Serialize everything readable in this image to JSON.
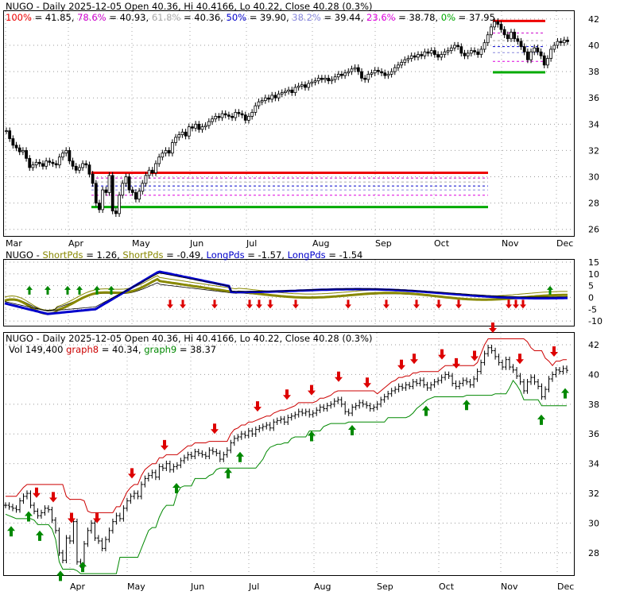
{
  "chart_data": [
    {
      "type": "line",
      "panel": "price-fibonacci",
      "title": "NUGO - Daily 2025-12-05 Open 40.36, Hi 40.4166, Lo 40.22, Close 40.28 (0.3%)",
      "fib_levels": [
        {
          "label": "100% = 41.85",
          "value": 41.85,
          "color": "#ee0000"
        },
        {
          "label": "78.6% = 40.93",
          "value": 40.93,
          "color": "#cc00cc"
        },
        {
          "label": "61.8% = 40.36",
          "value": 40.36,
          "color": "#aaaaaa"
        },
        {
          "label": "50% = 39.90",
          "value": 39.9,
          "color": "#0000cc"
        },
        {
          "label": "38.2% = 39.44",
          "value": 39.44,
          "color": "#8888dd"
        },
        {
          "label": "23.6% = 38.78",
          "value": 38.78,
          "color": "#dd00dd"
        },
        {
          "label": "0% = 37.95",
          "value": 37.95,
          "color": "#00aa00"
        }
      ],
      "yticks": [
        42,
        40,
        38,
        36,
        34,
        32,
        30,
        28,
        26
      ],
      "ylim": [
        25.5,
        42.6
      ],
      "x_labels": [
        "Mar",
        "Apr",
        "May",
        "Jun",
        "Jul",
        "Aug",
        "Sep",
        "Oct",
        "Nov",
        "Dec"
      ],
      "series": [
        {
          "values": [
            33.5,
            32.9,
            32.4,
            32.2,
            31.9,
            32.0,
            31.4,
            30.7,
            30.9,
            31.1,
            31.0,
            30.8,
            31.2,
            31.1,
            31.0,
            30.9,
            31.5,
            31.8,
            32.0,
            31.2,
            30.8,
            30.5,
            30.7,
            31.0,
            30.9,
            30.2,
            29.5,
            28.0,
            27.5,
            29.0,
            28.8,
            30.1,
            27.4,
            27.2,
            28.6,
            29.5,
            30.0,
            29.0,
            28.8,
            28.3,
            28.9,
            29.5,
            30.1,
            30.5,
            30.3,
            31.0,
            31.5,
            31.8,
            32.0,
            31.8,
            32.6,
            33.0,
            33.2,
            33.4,
            33.1,
            33.8,
            33.7,
            34.0,
            33.6,
            33.8,
            33.9,
            34.2,
            34.4,
            34.6,
            34.5,
            34.8,
            34.7,
            34.6,
            34.5,
            34.9,
            34.8,
            34.7,
            34.3,
            34.6,
            34.9,
            35.4,
            35.7,
            35.8,
            36.0,
            35.9,
            36.2,
            36.0,
            36.3,
            36.4,
            36.5,
            36.6,
            36.4,
            36.8,
            36.9,
            37.0,
            36.8,
            37.1,
            37.2,
            37.3,
            37.5,
            37.4,
            37.5,
            37.3,
            37.4,
            37.6,
            37.8,
            37.7,
            37.9,
            38.0,
            38.2,
            38.3,
            38.0,
            37.5,
            37.4,
            37.8,
            37.9,
            38.1,
            38.0,
            37.9,
            37.7,
            37.8,
            38.0,
            38.3,
            38.5,
            38.7,
            38.9,
            39.0,
            39.2,
            39.1,
            39.3,
            39.2,
            39.5,
            39.4,
            39.6,
            39.3,
            39.1,
            39.3,
            39.5,
            39.6,
            39.8,
            40.0,
            39.9,
            39.4,
            39.2,
            39.4,
            39.6,
            39.5,
            39.3,
            39.7,
            40.2,
            40.8,
            41.4,
            41.8,
            41.6,
            41.2,
            40.8,
            40.5,
            41.0,
            40.5,
            40.3,
            39.9,
            39.5,
            38.9,
            39.5,
            39.8,
            39.5,
            39.2,
            38.5,
            39.0,
            39.7,
            40.0,
            40.3,
            40.2,
            40.4,
            40.28
          ],
          "color": "#000000"
        }
      ]
    },
    {
      "type": "line",
      "panel": "shortpds-longpds",
      "title": "NUGO - ShortPds = 1.26, ShortPds = -0.49, LongPds = -1.57, LongPds = -1.54",
      "title_parts": [
        {
          "text": "NUGO - ",
          "color": "#000000"
        },
        {
          "text": "ShortPds",
          "color": "#888800"
        },
        {
          "text": " = 1.26, ",
          "color": "#000000"
        },
        {
          "text": "ShortPds",
          "color": "#888800"
        },
        {
          "text": " = -0.49, ",
          "color": "#000000"
        },
        {
          "text": "LongPds",
          "color": "#0000cc"
        },
        {
          "text": " = -1.57, ",
          "color": "#000000"
        },
        {
          "text": "LongPds",
          "color": "#0000cc"
        },
        {
          "text": " = -1.54",
          "color": "#000000"
        }
      ],
      "yticks": [
        15,
        10,
        5,
        0,
        -5,
        -10
      ],
      "ylim": [
        -12,
        16
      ]
    },
    {
      "type": "line",
      "panel": "price-graph",
      "title": "NUGO - Daily 2025-12-05 Open 40.36, Hi 40.4166, Lo 40.22, Close 40.28 (0.3%)",
      "legend_parts": [
        {
          "text": "Vol 149,400 ",
          "color": "#000000"
        },
        {
          "text": "graph8",
          "color": "#cc0000"
        },
        {
          "text": " = 40.34, ",
          "color": "#000000"
        },
        {
          "text": "graph9",
          "color": "#008800"
        },
        {
          "text": " = 38.37",
          "color": "#000000"
        }
      ],
      "graph8": 40.34,
      "graph9": 38.37,
      "yticks": [
        42,
        40,
        38,
        36,
        34,
        32,
        30,
        28
      ],
      "ylim": [
        26.5,
        42.8
      ],
      "x_labels": [
        "Apr",
        "May",
        "Jun",
        "Jul",
        "Aug",
        "Sep",
        "Oct",
        "Nov",
        "Dec"
      ]
    }
  ]
}
